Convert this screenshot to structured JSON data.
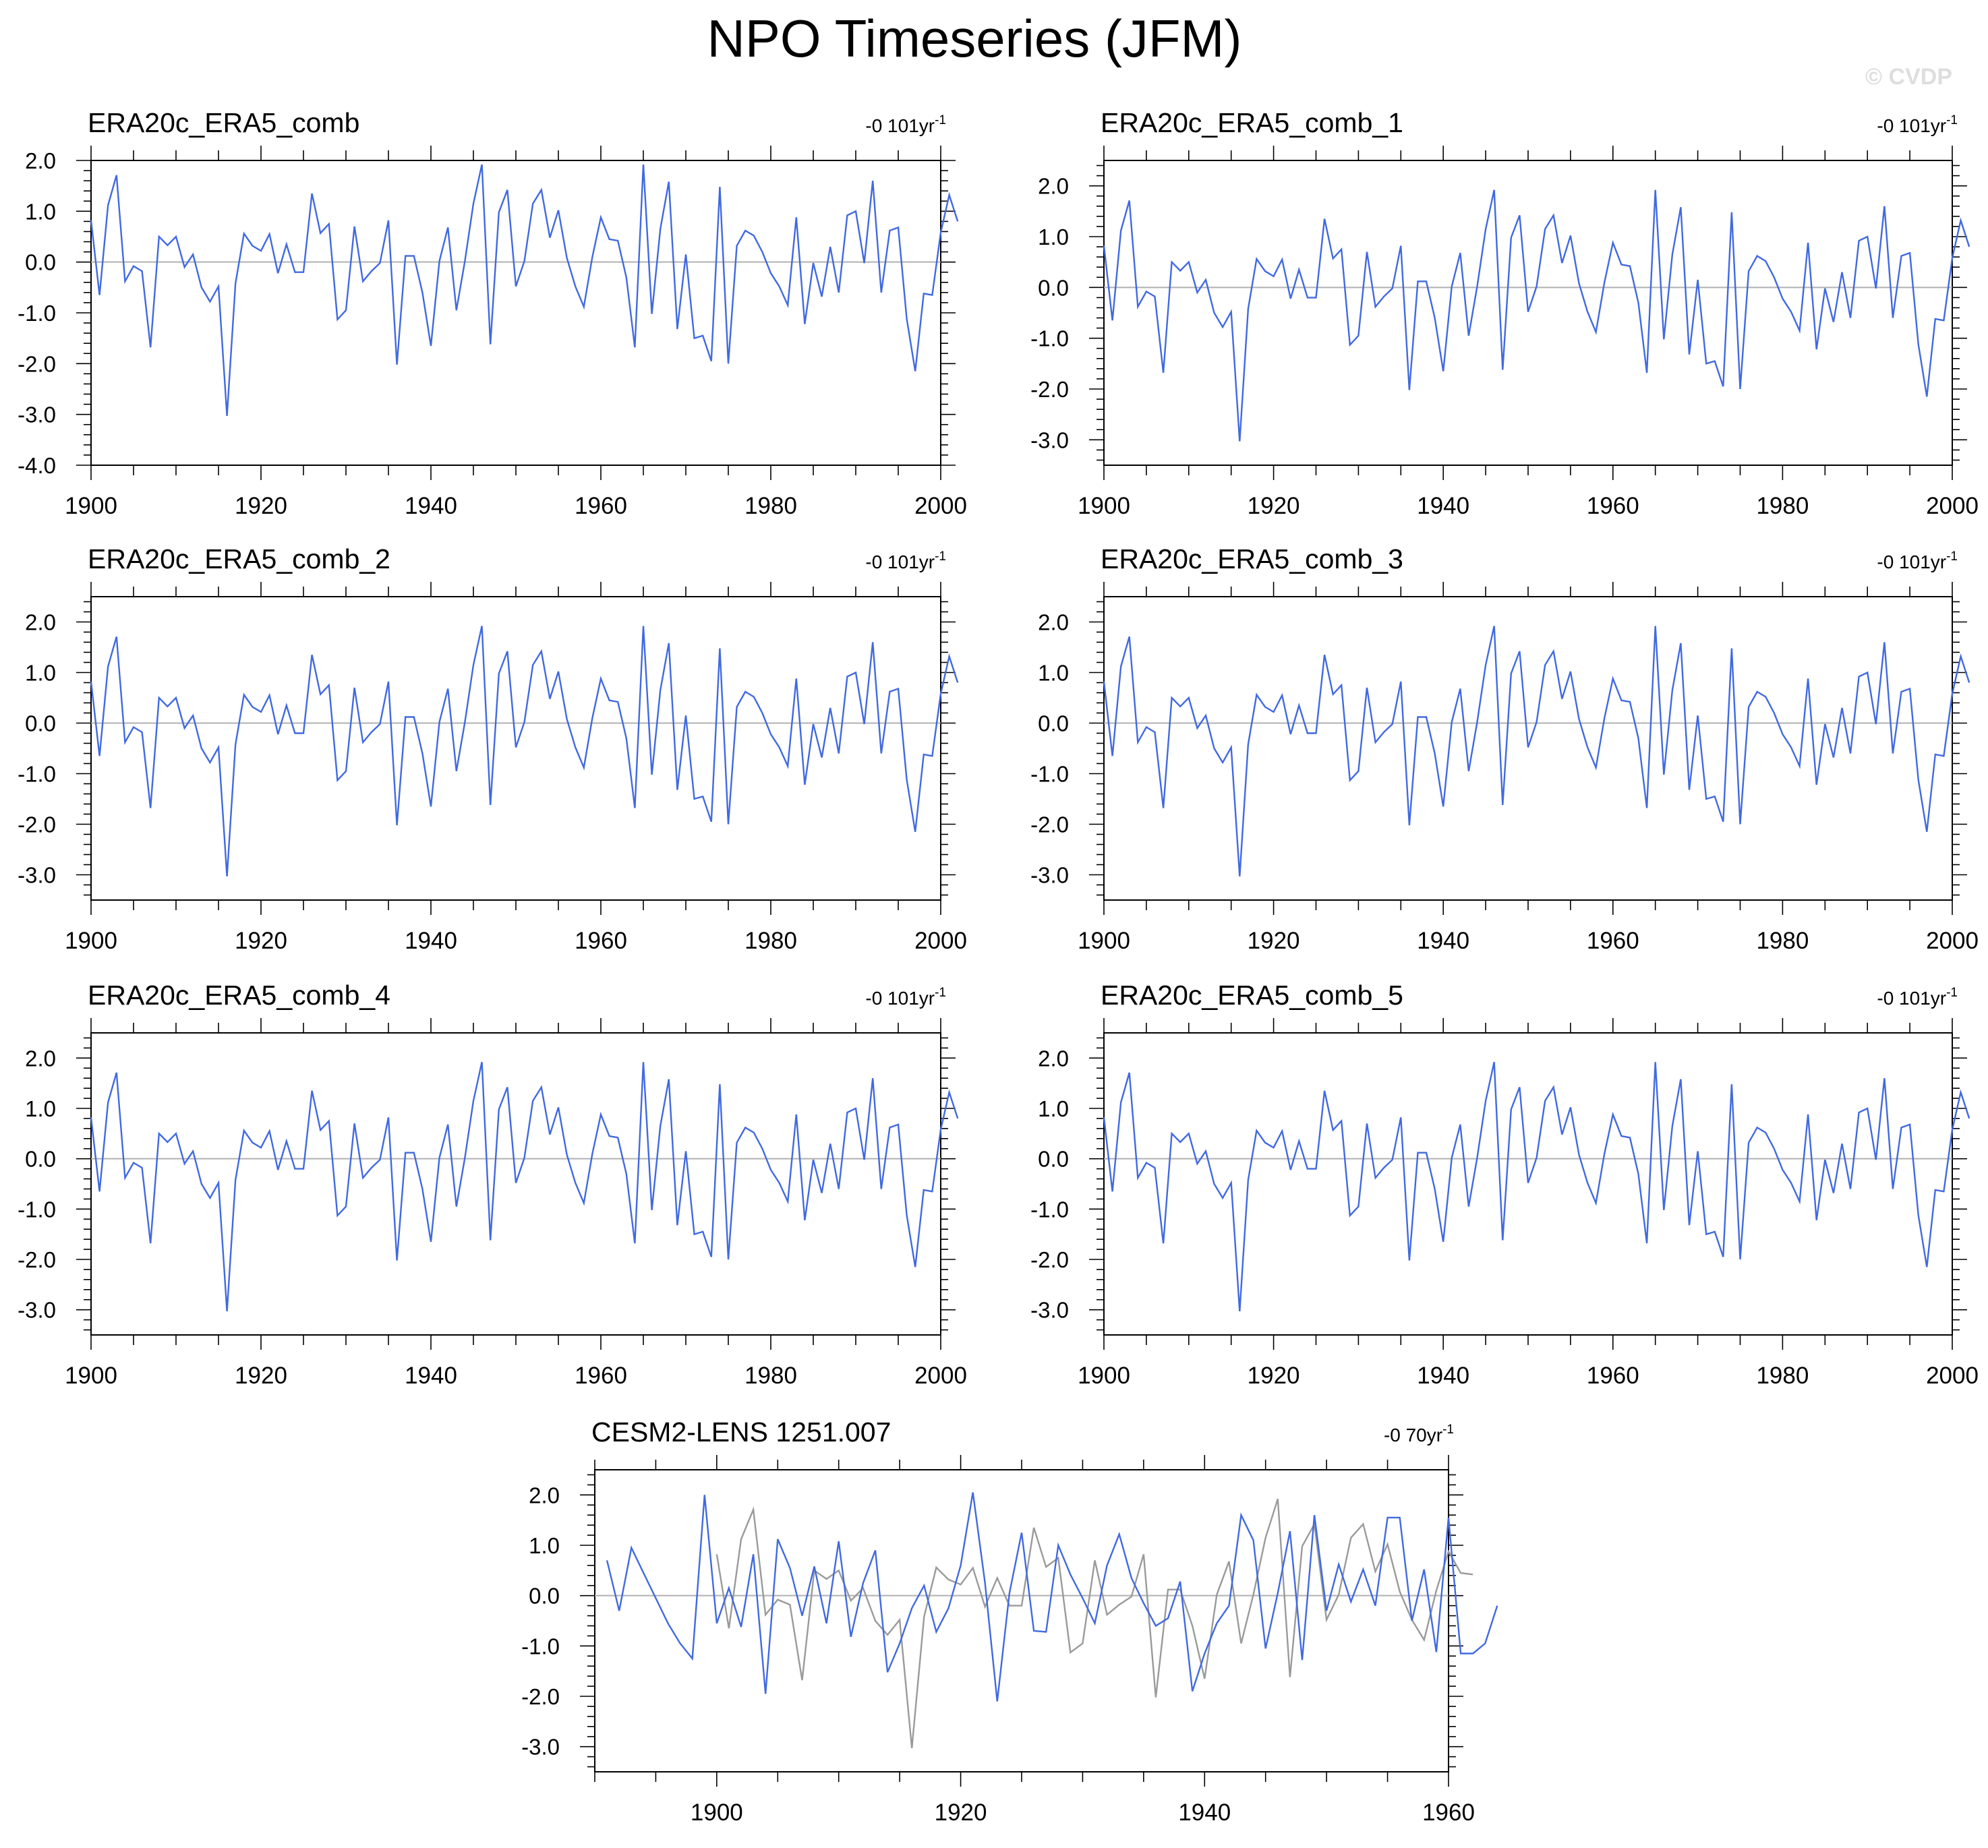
{
  "title": "NPO Timeseries (JFM)",
  "watermark": "© CVDP",
  "colors": {
    "series": "#4169e1",
    "reference": "#9a9a9a",
    "zero": "#b0b0b0",
    "axis": "#000000",
    "watermark": "#dedede"
  },
  "chart_data": [
    {
      "type": "line",
      "title": "ERA20c_ERA5_comb",
      "trend": "-0 101yr",
      "trend_exp": "-1",
      "xlim": [
        1900,
        2000
      ],
      "ylim": [
        -4.0,
        2.0
      ],
      "xticks": [
        "1900",
        "1920",
        "1940",
        "1960",
        "1980",
        "2000"
      ],
      "yticks": [
        "2.0",
        "1.0",
        "0.0",
        "-1.0",
        "-2.0",
        "-3.0",
        "-4.0"
      ],
      "series": [
        {
          "x_start": 1900,
          "values": [
            0.82,
            -0.65,
            1.12,
            1.71,
            -0.38,
            -0.08,
            -0.18,
            -1.68,
            0.5,
            0.33,
            0.5,
            -0.1,
            0.15,
            -0.5,
            -0.78,
            -0.48,
            -3.03,
            -0.42,
            0.56,
            0.32,
            0.22,
            0.55,
            -0.22,
            0.35,
            -0.2,
            -0.2,
            1.35,
            0.57,
            0.75,
            -1.13,
            -0.95,
            0.7,
            -0.38,
            -0.18,
            -0.02,
            0.82,
            -2.02,
            0.12,
            0.12,
            -0.6,
            -1.65,
            0.02,
            0.68,
            -0.95,
            0.02,
            1.15,
            1.92,
            -1.62,
            0.98,
            1.42,
            -0.48,
            0.02,
            1.15,
            1.42,
            0.48,
            1.02,
            0.08,
            -0.48,
            -0.88,
            0.1,
            0.88,
            0.45,
            0.42,
            -0.3,
            -1.68,
            1.92,
            -1.02,
            0.65,
            1.58,
            -1.32,
            0.15,
            -1.5,
            -1.45,
            -1.95,
            1.48,
            -2.0,
            0.32,
            0.62,
            0.52,
            0.2,
            -0.22,
            -0.48,
            -0.85,
            0.88,
            -1.22,
            -0.02,
            -0.68,
            0.3,
            -0.6,
            0.92,
            1.0,
            -0.02,
            1.6,
            -0.6,
            0.62,
            0.68,
            -1.12,
            -2.15,
            -0.62,
            -0.65,
            0.58,
            1.32,
            0.8
          ]
        }
      ]
    },
    {
      "type": "line",
      "title": "ERA20c_ERA5_comb_1",
      "trend": "-0 101yr",
      "trend_exp": "-1",
      "xlim": [
        1900,
        2000
      ],
      "ylim": [
        -3.5,
        2.5
      ],
      "xticks": [
        "1900",
        "1920",
        "1940",
        "1960",
        "1980",
        "2000"
      ],
      "yticks": [
        "2.0",
        "1.0",
        "0.0",
        "-1.0",
        "-2.0",
        "-3.0"
      ],
      "series": [
        {
          "x_start": 1900,
          "values": [
            0.82,
            -0.65,
            1.12,
            1.71,
            -0.38,
            -0.08,
            -0.18,
            -1.68,
            0.5,
            0.33,
            0.5,
            -0.1,
            0.15,
            -0.5,
            -0.78,
            -0.48,
            -3.03,
            -0.42,
            0.56,
            0.32,
            0.22,
            0.55,
            -0.22,
            0.35,
            -0.2,
            -0.2,
            1.35,
            0.57,
            0.75,
            -1.13,
            -0.95,
            0.7,
            -0.38,
            -0.18,
            -0.02,
            0.82,
            -2.02,
            0.12,
            0.12,
            -0.6,
            -1.65,
            0.02,
            0.68,
            -0.95,
            0.02,
            1.15,
            1.92,
            -1.62,
            0.98,
            1.42,
            -0.48,
            0.02,
            1.15,
            1.42,
            0.48,
            1.02,
            0.08,
            -0.48,
            -0.88,
            0.1,
            0.88,
            0.45,
            0.42,
            -0.3,
            -1.68,
            1.92,
            -1.02,
            0.65,
            1.58,
            -1.32,
            0.15,
            -1.5,
            -1.45,
            -1.95,
            1.48,
            -2.0,
            0.32,
            0.62,
            0.52,
            0.2,
            -0.22,
            -0.48,
            -0.85,
            0.88,
            -1.22,
            -0.02,
            -0.68,
            0.3,
            -0.6,
            0.92,
            1.0,
            -0.02,
            1.6,
            -0.6,
            0.62,
            0.68,
            -1.12,
            -2.15,
            -0.62,
            -0.65,
            0.58,
            1.32,
            0.8
          ]
        }
      ]
    },
    {
      "type": "line",
      "title": "ERA20c_ERA5_comb_2",
      "trend": "-0 101yr",
      "trend_exp": "-1",
      "xlim": [
        1900,
        2000
      ],
      "ylim": [
        -3.5,
        2.5
      ],
      "xticks": [
        "1900",
        "1920",
        "1940",
        "1960",
        "1980",
        "2000"
      ],
      "yticks": [
        "2.0",
        "1.0",
        "0.0",
        "-1.0",
        "-2.0",
        "-3.0"
      ],
      "series": [
        {
          "x_start": 1900,
          "values": [
            0.82,
            -0.65,
            1.12,
            1.71,
            -0.38,
            -0.08,
            -0.18,
            -1.68,
            0.5,
            0.33,
            0.5,
            -0.1,
            0.15,
            -0.5,
            -0.78,
            -0.48,
            -3.03,
            -0.42,
            0.56,
            0.32,
            0.22,
            0.55,
            -0.22,
            0.35,
            -0.2,
            -0.2,
            1.35,
            0.57,
            0.75,
            -1.13,
            -0.95,
            0.7,
            -0.38,
            -0.18,
            -0.02,
            0.82,
            -2.02,
            0.12,
            0.12,
            -0.6,
            -1.65,
            0.02,
            0.68,
            -0.95,
            0.02,
            1.15,
            1.92,
            -1.62,
            0.98,
            1.42,
            -0.48,
            0.02,
            1.15,
            1.42,
            0.48,
            1.02,
            0.08,
            -0.48,
            -0.88,
            0.1,
            0.88,
            0.45,
            0.42,
            -0.3,
            -1.68,
            1.92,
            -1.02,
            0.65,
            1.58,
            -1.32,
            0.15,
            -1.5,
            -1.45,
            -1.95,
            1.48,
            -2.0,
            0.32,
            0.62,
            0.52,
            0.2,
            -0.22,
            -0.48,
            -0.85,
            0.88,
            -1.22,
            -0.02,
            -0.68,
            0.3,
            -0.6,
            0.92,
            1.0,
            -0.02,
            1.6,
            -0.6,
            0.62,
            0.68,
            -1.12,
            -2.15,
            -0.62,
            -0.65,
            0.58,
            1.32,
            0.8
          ]
        }
      ]
    },
    {
      "type": "line",
      "title": "ERA20c_ERA5_comb_3",
      "trend": "-0 101yr",
      "trend_exp": "-1",
      "xlim": [
        1900,
        2000
      ],
      "ylim": [
        -3.5,
        2.5
      ],
      "xticks": [
        "1900",
        "1920",
        "1940",
        "1960",
        "1980",
        "2000"
      ],
      "yticks": [
        "2.0",
        "1.0",
        "0.0",
        "-1.0",
        "-2.0",
        "-3.0"
      ],
      "series": [
        {
          "x_start": 1900,
          "values": [
            0.82,
            -0.65,
            1.12,
            1.71,
            -0.38,
            -0.08,
            -0.18,
            -1.68,
            0.5,
            0.33,
            0.5,
            -0.1,
            0.15,
            -0.5,
            -0.78,
            -0.48,
            -3.03,
            -0.42,
            0.56,
            0.32,
            0.22,
            0.55,
            -0.22,
            0.35,
            -0.2,
            -0.2,
            1.35,
            0.57,
            0.75,
            -1.13,
            -0.95,
            0.7,
            -0.38,
            -0.18,
            -0.02,
            0.82,
            -2.02,
            0.12,
            0.12,
            -0.6,
            -1.65,
            0.02,
            0.68,
            -0.95,
            0.02,
            1.15,
            1.92,
            -1.62,
            0.98,
            1.42,
            -0.48,
            0.02,
            1.15,
            1.42,
            0.48,
            1.02,
            0.08,
            -0.48,
            -0.88,
            0.1,
            0.88,
            0.45,
            0.42,
            -0.3,
            -1.68,
            1.92,
            -1.02,
            0.65,
            1.58,
            -1.32,
            0.15,
            -1.5,
            -1.45,
            -1.95,
            1.48,
            -2.0,
            0.32,
            0.62,
            0.52,
            0.2,
            -0.22,
            -0.48,
            -0.85,
            0.88,
            -1.22,
            -0.02,
            -0.68,
            0.3,
            -0.6,
            0.92,
            1.0,
            -0.02,
            1.6,
            -0.6,
            0.62,
            0.68,
            -1.12,
            -2.15,
            -0.62,
            -0.65,
            0.58,
            1.32,
            0.8
          ]
        }
      ]
    },
    {
      "type": "line",
      "title": "ERA20c_ERA5_comb_4",
      "trend": "-0 101yr",
      "trend_exp": "-1",
      "xlim": [
        1900,
        2000
      ],
      "ylim": [
        -3.5,
        2.5
      ],
      "xticks": [
        "1900",
        "1920",
        "1940",
        "1960",
        "1980",
        "2000"
      ],
      "yticks": [
        "2.0",
        "1.0",
        "0.0",
        "-1.0",
        "-2.0",
        "-3.0"
      ],
      "series": [
        {
          "x_start": 1900,
          "values": [
            0.82,
            -0.65,
            1.12,
            1.71,
            -0.38,
            -0.08,
            -0.18,
            -1.68,
            0.5,
            0.33,
            0.5,
            -0.1,
            0.15,
            -0.5,
            -0.78,
            -0.48,
            -3.03,
            -0.42,
            0.56,
            0.32,
            0.22,
            0.55,
            -0.22,
            0.35,
            -0.2,
            -0.2,
            1.35,
            0.57,
            0.75,
            -1.13,
            -0.95,
            0.7,
            -0.38,
            -0.18,
            -0.02,
            0.82,
            -2.02,
            0.12,
            0.12,
            -0.6,
            -1.65,
            0.02,
            0.68,
            -0.95,
            0.02,
            1.15,
            1.92,
            -1.62,
            0.98,
            1.42,
            -0.48,
            0.02,
            1.15,
            1.42,
            0.48,
            1.02,
            0.08,
            -0.48,
            -0.88,
            0.1,
            0.88,
            0.45,
            0.42,
            -0.3,
            -1.68,
            1.92,
            -1.02,
            0.65,
            1.58,
            -1.32,
            0.15,
            -1.5,
            -1.45,
            -1.95,
            1.48,
            -2.0,
            0.32,
            0.62,
            0.52,
            0.2,
            -0.22,
            -0.48,
            -0.85,
            0.88,
            -1.22,
            -0.02,
            -0.68,
            0.3,
            -0.6,
            0.92,
            1.0,
            -0.02,
            1.6,
            -0.6,
            0.62,
            0.68,
            -1.12,
            -2.15,
            -0.62,
            -0.65,
            0.58,
            1.32,
            0.8
          ]
        }
      ]
    },
    {
      "type": "line",
      "title": "ERA20c_ERA5_comb_5",
      "trend": "-0 101yr",
      "trend_exp": "-1",
      "xlim": [
        1900,
        2000
      ],
      "ylim": [
        -3.5,
        2.5
      ],
      "xticks": [
        "1900",
        "1920",
        "1940",
        "1960",
        "1980",
        "2000"
      ],
      "yticks": [
        "2.0",
        "1.0",
        "0.0",
        "-1.0",
        "-2.0",
        "-3.0"
      ],
      "series": [
        {
          "x_start": 1900,
          "values": [
            0.82,
            -0.65,
            1.12,
            1.71,
            -0.38,
            -0.08,
            -0.18,
            -1.68,
            0.5,
            0.33,
            0.5,
            -0.1,
            0.15,
            -0.5,
            -0.78,
            -0.48,
            -3.03,
            -0.42,
            0.56,
            0.32,
            0.22,
            0.55,
            -0.22,
            0.35,
            -0.2,
            -0.2,
            1.35,
            0.57,
            0.75,
            -1.13,
            -0.95,
            0.7,
            -0.38,
            -0.18,
            -0.02,
            0.82,
            -2.02,
            0.12,
            0.12,
            -0.6,
            -1.65,
            0.02,
            0.68,
            -0.95,
            0.02,
            1.15,
            1.92,
            -1.62,
            0.98,
            1.42,
            -0.48,
            0.02,
            1.15,
            1.42,
            0.48,
            1.02,
            0.08,
            -0.48,
            -0.88,
            0.1,
            0.88,
            0.45,
            0.42,
            -0.3,
            -1.68,
            1.92,
            -1.02,
            0.65,
            1.58,
            -1.32,
            0.15,
            -1.5,
            -1.45,
            -1.95,
            1.48,
            -2.0,
            0.32,
            0.62,
            0.52,
            0.2,
            -0.22,
            -0.48,
            -0.85,
            0.88,
            -1.22,
            -0.02,
            -0.68,
            0.3,
            -0.6,
            0.92,
            1.0,
            -0.02,
            1.6,
            -0.6,
            0.62,
            0.68,
            -1.12,
            -2.15,
            -0.62,
            -0.65,
            0.58,
            1.32,
            0.8
          ]
        }
      ]
    },
    {
      "type": "line",
      "title": "CESM2-LENS 1251.007",
      "trend": "-0 70yr",
      "trend_exp": "-1",
      "xlim": [
        1890,
        1960
      ],
      "ylim": [
        -3.5,
        2.5
      ],
      "xticks": [
        "1900",
        "1920",
        "1940",
        "1960"
      ],
      "yticks": [
        "2.0",
        "1.0",
        "0.0",
        "-1.0",
        "-2.0",
        "-3.0"
      ],
      "series": [
        {
          "x_start": 1900,
          "values": [
            0.82,
            -0.65,
            1.12,
            1.71,
            -0.38,
            -0.08,
            -0.18,
            -1.68,
            0.5,
            0.33,
            0.5,
            -0.1,
            0.15,
            -0.5,
            -0.78,
            -0.48,
            -3.03,
            -0.42,
            0.56,
            0.32,
            0.22,
            0.55,
            -0.22,
            0.35,
            -0.2,
            -0.2,
            1.35,
            0.57,
            0.75,
            -1.13,
            -0.95,
            0.7,
            -0.38,
            -0.18,
            -0.02,
            0.82,
            -2.02,
            0.12,
            0.12,
            -0.6,
            -1.65,
            0.02,
            0.68,
            -0.95,
            0.02,
            1.15,
            1.92,
            -1.62,
            0.98,
            1.42,
            -0.48,
            0.02,
            1.15,
            1.42,
            0.48,
            1.02,
            0.08,
            -0.48,
            -0.88,
            0.1,
            0.88,
            0.45,
            0.42
          ]
        },
        {
          "x_start": 1891,
          "values": [
            0.7,
            -0.3,
            0.95,
            0.45,
            -0.05,
            -0.55,
            -0.95,
            -1.25,
            2.0,
            -0.55,
            0.15,
            -0.62,
            0.82,
            -1.95,
            1.12,
            0.55,
            -0.4,
            0.58,
            -0.55,
            1.08,
            -0.82,
            0.25,
            0.9,
            -1.52,
            -0.95,
            -0.25,
            0.2,
            -0.72,
            -0.25,
            0.6,
            2.05,
            0.25,
            -2.1,
            0.05,
            1.25,
            -0.7,
            -0.72,
            1.0,
            0.42,
            -0.05,
            -0.55,
            0.6,
            1.22,
            0.35,
            -0.15,
            -0.6,
            -0.45,
            0.28,
            -1.9,
            -1.15,
            -0.55,
            -0.2,
            1.6,
            1.1,
            -1.05,
            0.05,
            1.28,
            -1.28,
            1.6,
            -0.3,
            0.62,
            -0.12,
            0.52,
            -0.2,
            1.55,
            1.55,
            -0.5,
            0.52,
            -1.12,
            1.55,
            -1.15,
            -1.15,
            -0.95,
            -0.2
          ]
        }
      ]
    }
  ]
}
